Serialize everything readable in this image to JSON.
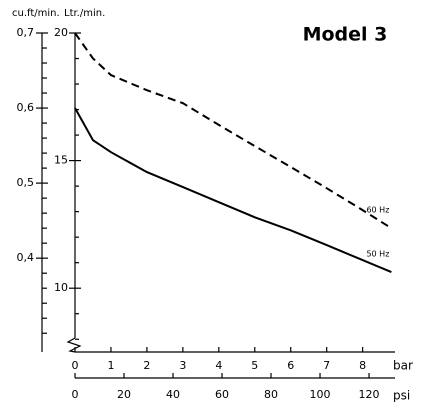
{
  "chart_data": {
    "type": "line",
    "title": "Model 3",
    "y_label": "Ltr./min.",
    "y2_label": "cu.ft/min.",
    "x_label": "bar",
    "x2_label": "psi",
    "x": [
      0,
      0.5,
      1,
      2,
      3,
      4,
      5,
      6,
      7,
      8,
      8.8
    ],
    "series": [
      {
        "name": "60 Hz",
        "color": "#000000",
        "style": "dashed",
        "values": [
          20,
          19.0,
          18.35,
          17.76,
          17.25,
          16.4,
          15.57,
          14.75,
          13.92,
          13.06,
          12.35
        ]
      },
      {
        "name": "50 Hz",
        "color": "#000000",
        "style": "solid",
        "values": [
          17.06,
          15.8,
          15.33,
          14.55,
          13.96,
          13.37,
          12.78,
          12.27,
          11.69,
          11.1,
          10.63
        ]
      }
    ],
    "xlim": [
      0,
      8.9
    ],
    "xticks": [
      0,
      1,
      2,
      3,
      4,
      5,
      6,
      7,
      8
    ],
    "x2lim": [
      0,
      130.6
    ],
    "x2ticks": [
      0,
      20,
      40,
      60,
      80,
      100,
      120
    ],
    "ylim": [
      7.5,
      20
    ],
    "yticks": [
      10,
      15,
      20
    ],
    "y_minor_ticks": [
      8,
      9,
      11,
      12,
      13,
      14,
      16,
      17,
      18,
      19
    ],
    "y2lim": [
      0.275,
      0.7
    ],
    "y2ticks": [
      {
        "value": 0.4,
        "label": "0,4"
      },
      {
        "value": 0.5,
        "label": "0,5"
      },
      {
        "value": 0.6,
        "label": "0,6"
      },
      {
        "value": 0.7,
        "label": "0,7"
      }
    ],
    "y2_minor_ticks": [
      0.3,
      0.32,
      0.34,
      0.36,
      0.38,
      0.42,
      0.44,
      0.46,
      0.48,
      0.52,
      0.54,
      0.56,
      0.58,
      0.62,
      0.64,
      0.66,
      0.68
    ]
  }
}
